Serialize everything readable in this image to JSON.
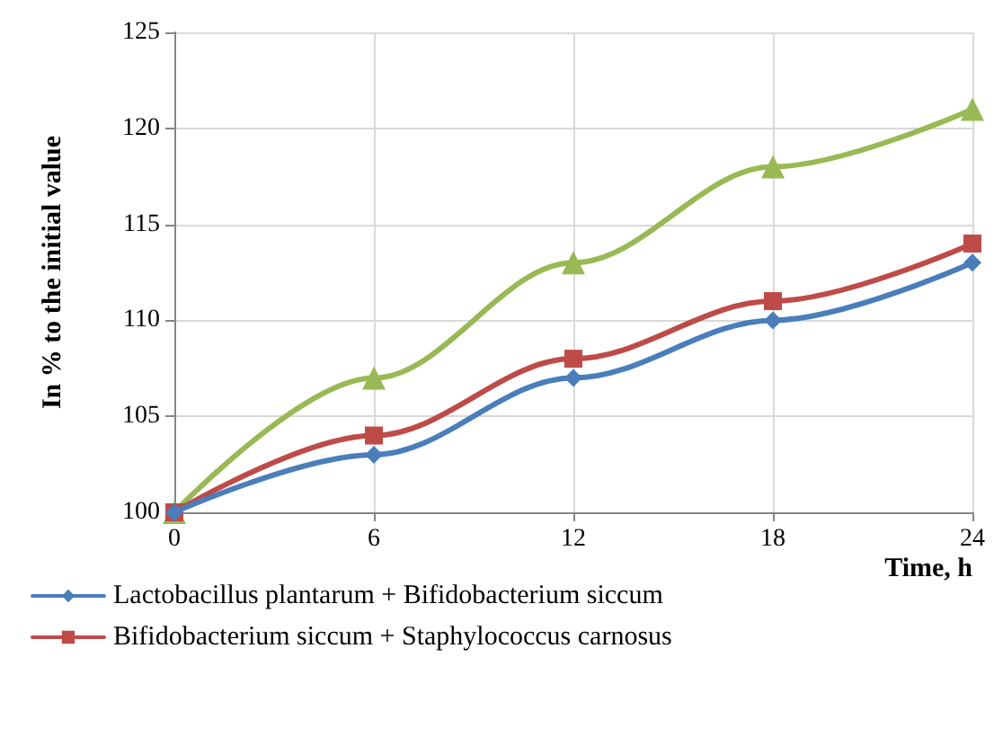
{
  "chart_data": {
    "type": "line",
    "xlabel": "Time, h",
    "ylabel": "In % to the initial value",
    "x": [
      0,
      6,
      12,
      18,
      24
    ],
    "series": [
      {
        "name": "Lactobacillus plantarum + Bifidobacterium siccum",
        "color": "#4a7ebb",
        "marker": "diamond",
        "values": [
          100,
          103,
          107,
          110,
          113
        ]
      },
      {
        "name": "Bifidobacterium siccum + Staphylococcus carnosus",
        "color": "#be4b48",
        "marker": "square",
        "values": [
          100,
          104,
          108,
          111,
          114
        ]
      },
      {
        "color": "#98b954",
        "marker": "triangle",
        "values": [
          100,
          107,
          113,
          118,
          121
        ]
      }
    ],
    "xlim": [
      0,
      24
    ],
    "xticks": [
      0,
      6,
      12,
      18,
      24
    ],
    "ylim": [
      100,
      125
    ],
    "yticks": [
      100,
      105,
      110,
      115,
      120,
      125
    ],
    "grid": true,
    "legend": "bottom"
  }
}
